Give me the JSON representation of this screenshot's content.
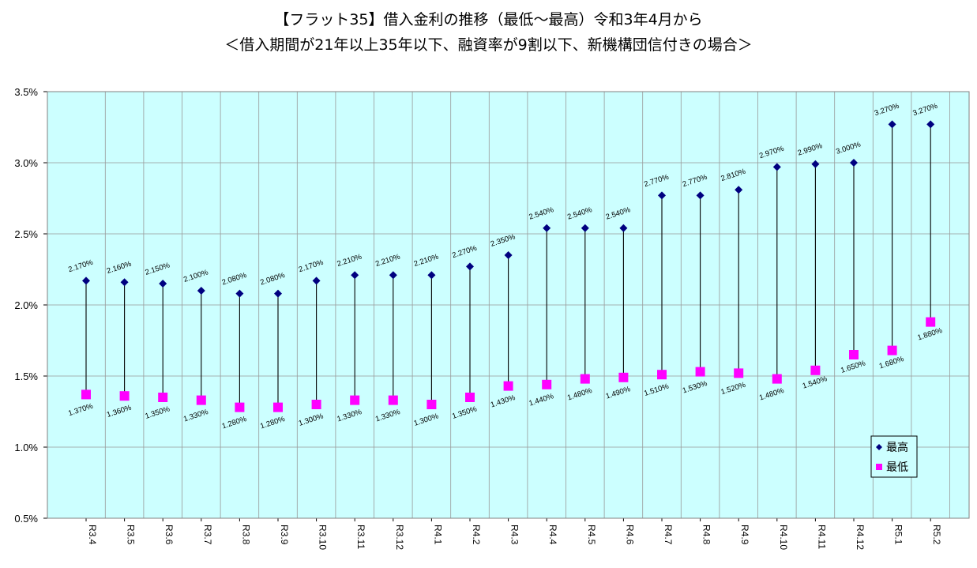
{
  "chart_data": {
    "type": "scatter",
    "title": "【フラット35】借入金利の推移（最低～最高）令和3年4月から",
    "subtitle": "＜借入期間が21年以上35年以下、融資率が9割以下、新機構団信付きの場合＞",
    "xlabel": "",
    "ylabel": "",
    "ylim": [
      0.5,
      3.5
    ],
    "yticks": [
      "0.5%",
      "1.0%",
      "1.5%",
      "2.0%",
      "2.5%",
      "3.0%",
      "3.5%"
    ],
    "ytick_values": [
      0.5,
      1.0,
      1.5,
      2.0,
      2.5,
      3.0,
      3.5
    ],
    "grid": true,
    "legend_position": "bottom-right",
    "categories": [
      "R3.4",
      "R3.5",
      "R3.6",
      "R3.7",
      "R3.8",
      "R3.9",
      "R3.10",
      "R3.11",
      "R3.12",
      "R4.1",
      "R4.2",
      "R4.3",
      "R4.4",
      "R4.5",
      "R4.6",
      "R4.7",
      "R4.8",
      "R4.9",
      "R4.10",
      "R4.11",
      "R4.12",
      "R5.1",
      "R5.2"
    ],
    "series": [
      {
        "name": "最高",
        "color": "#000080",
        "marker": "diamond",
        "values": [
          2.17,
          2.16,
          2.15,
          2.1,
          2.08,
          2.08,
          2.17,
          2.21,
          2.21,
          2.21,
          2.27,
          2.35,
          2.54,
          2.54,
          2.54,
          2.77,
          2.77,
          2.81,
          2.97,
          2.99,
          3.0,
          3.27,
          3.27
        ],
        "labels": [
          "2.170%",
          "2.160%",
          "2.150%",
          "2.100%",
          "2.080%",
          "2.080%",
          "2.170%",
          "2.210%",
          "2.210%",
          "2.210%",
          "2.270%",
          "2.350%",
          "2.540%",
          "2.540%",
          "2.540%",
          "2.770%",
          "2.770%",
          "2.810%",
          "2.970%",
          "2.990%",
          "3.000%",
          "3.270%",
          "3.270%"
        ]
      },
      {
        "name": "最低",
        "color": "#ff00ff",
        "marker": "square",
        "values": [
          1.37,
          1.36,
          1.35,
          1.33,
          1.28,
          1.28,
          1.3,
          1.33,
          1.33,
          1.3,
          1.35,
          1.43,
          1.44,
          1.48,
          1.49,
          1.51,
          1.53,
          1.52,
          1.48,
          1.54,
          1.65,
          1.68,
          1.88
        ],
        "labels": [
          "1.370%",
          "1.360%",
          "1.350%",
          "1.330%",
          "1.280%",
          "1.280%",
          "1.300%",
          "1.330%",
          "1.330%",
          "1.300%",
          "1.350%",
          "1.430%",
          "1.440%",
          "1.480%",
          "1.490%",
          "1.510%",
          "1.530%",
          "1.520%",
          "1.480%",
          "1.540%",
          "1.650%",
          "1.680%",
          "1.880%"
        ]
      }
    ],
    "colors": {
      "plot_background": "#ccffff",
      "grid": "#999999",
      "range_line": "#000000"
    }
  }
}
